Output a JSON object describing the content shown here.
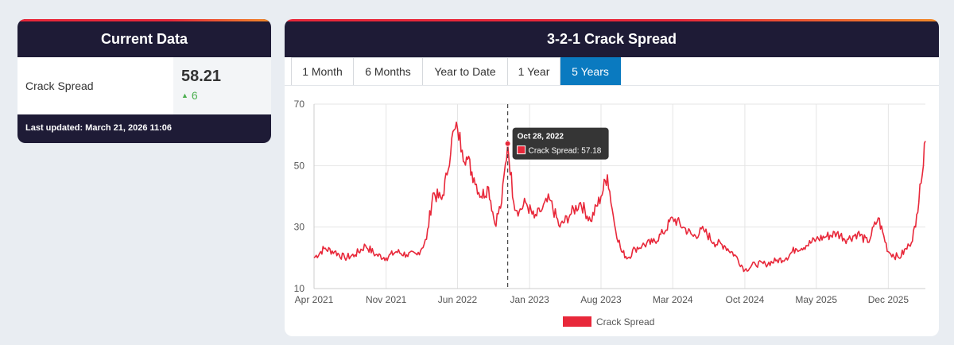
{
  "current": {
    "title": "Current Data",
    "metric_label": "Crack Spread",
    "value": "58.21",
    "change": "6",
    "change_icon": "up-triangle-icon",
    "last_updated": "Last updated: March 21, 2026 11:06"
  },
  "chart_panel": {
    "title": "3-2-1 Crack Spread",
    "tabs": [
      {
        "label": "1 Month",
        "active": false
      },
      {
        "label": "6 Months",
        "active": false
      },
      {
        "label": "Year to Date",
        "active": false
      },
      {
        "label": "1 Year",
        "active": false
      },
      {
        "label": "5 Years",
        "active": true
      }
    ]
  },
  "colors": {
    "series": "#e8283a",
    "header_bg": "#1e1b36",
    "active_tab": "#0a7ac0",
    "positive": "#4caf50"
  },
  "chart_data": {
    "type": "line",
    "title": "",
    "xlabel": "",
    "ylabel": "",
    "ylim": [
      10,
      70
    ],
    "y_ticks": [
      10,
      30,
      50,
      70
    ],
    "x_ticks": [
      "Apr 2021",
      "Nov 2021",
      "Jun 2022",
      "Jan 2023",
      "Aug 2023",
      "Mar 2024",
      "Oct 2024",
      "May 2025",
      "Dec 2025"
    ],
    "grid": true,
    "legend_position": "bottom",
    "series": [
      {
        "name": "Crack Spread",
        "x": [
          "2021-04-01",
          "2021-05-01",
          "2021-06-01",
          "2021-07-01",
          "2021-08-01",
          "2021-09-01",
          "2021-10-01",
          "2021-11-01",
          "2021-12-01",
          "2022-01-01",
          "2022-02-01",
          "2022-03-01",
          "2022-03-20",
          "2022-04-15",
          "2022-05-01",
          "2022-05-15",
          "2022-06-01",
          "2022-06-15",
          "2022-07-01",
          "2022-07-20",
          "2022-08-10",
          "2022-09-01",
          "2022-09-20",
          "2022-10-10",
          "2022-10-28",
          "2022-11-15",
          "2022-12-01",
          "2022-12-20",
          "2023-01-15",
          "2023-02-01",
          "2023-03-01",
          "2023-04-01",
          "2023-05-01",
          "2023-06-01",
          "2023-07-01",
          "2023-08-01",
          "2023-08-20",
          "2023-09-10",
          "2023-10-01",
          "2023-10-20",
          "2023-11-10",
          "2023-12-01",
          "2024-01-01",
          "2024-02-01",
          "2024-03-01",
          "2024-04-01",
          "2024-05-01",
          "2024-06-01",
          "2024-07-01",
          "2024-08-01",
          "2024-09-01",
          "2024-10-01",
          "2024-11-01",
          "2024-12-01",
          "2025-01-01",
          "2025-02-01",
          "2025-03-01",
          "2025-04-01",
          "2025-05-01",
          "2025-06-01",
          "2025-07-01",
          "2025-08-01",
          "2025-09-01",
          "2025-10-01",
          "2025-11-01",
          "2025-12-01",
          "2026-01-01",
          "2026-02-01",
          "2026-02-20",
          "2026-03-05",
          "2026-03-15",
          "2026-03-21"
        ],
        "values": [
          20,
          23,
          22,
          20,
          21,
          24,
          21,
          20,
          22,
          21,
          21,
          26,
          41,
          39,
          47,
          59,
          62,
          55,
          52,
          46,
          40,
          43,
          31,
          38,
          57.18,
          38,
          35,
          38,
          33,
          35,
          39,
          30,
          34,
          38,
          32,
          40,
          47,
          31,
          22,
          20,
          23,
          24,
          25,
          28,
          33,
          30,
          27,
          29,
          25,
          24,
          21,
          16,
          18,
          18,
          19,
          20,
          23,
          24,
          26,
          27,
          28,
          26,
          28,
          25,
          33,
          22,
          20,
          24,
          30,
          44,
          50,
          58
        ]
      }
    ],
    "tooltip": {
      "date": "Oct 28, 2022",
      "label": "Crack Spread: 57.18"
    }
  }
}
